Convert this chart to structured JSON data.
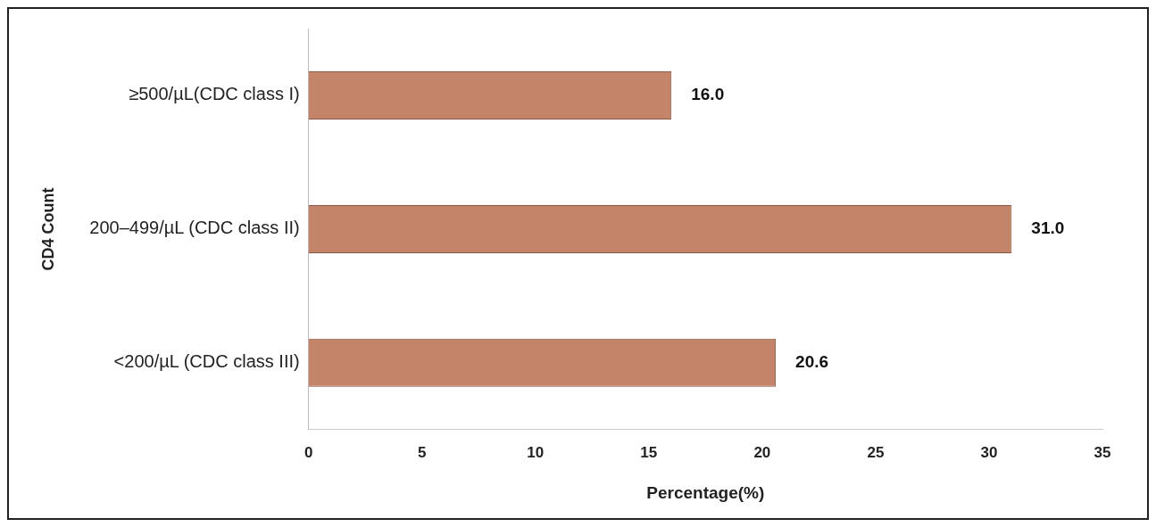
{
  "chart_data": {
    "type": "bar",
    "orientation": "horizontal",
    "categories": [
      "≥500/µL(CDC class I)",
      "200–499/µL (CDC class II)",
      "<200/µL (CDC class III)"
    ],
    "values": [
      16.0,
      31.0,
      20.6
    ],
    "value_labels": [
      "16.0",
      "31.0",
      "20.6"
    ],
    "color": "#c4846a",
    "xlim": [
      0,
      35
    ],
    "xticks": [
      0,
      5,
      10,
      15,
      20,
      25,
      30,
      35
    ],
    "xlabel": "Percentage(%)",
    "ylabel": "CD4 Count",
    "grid": false,
    "legend": false
  }
}
